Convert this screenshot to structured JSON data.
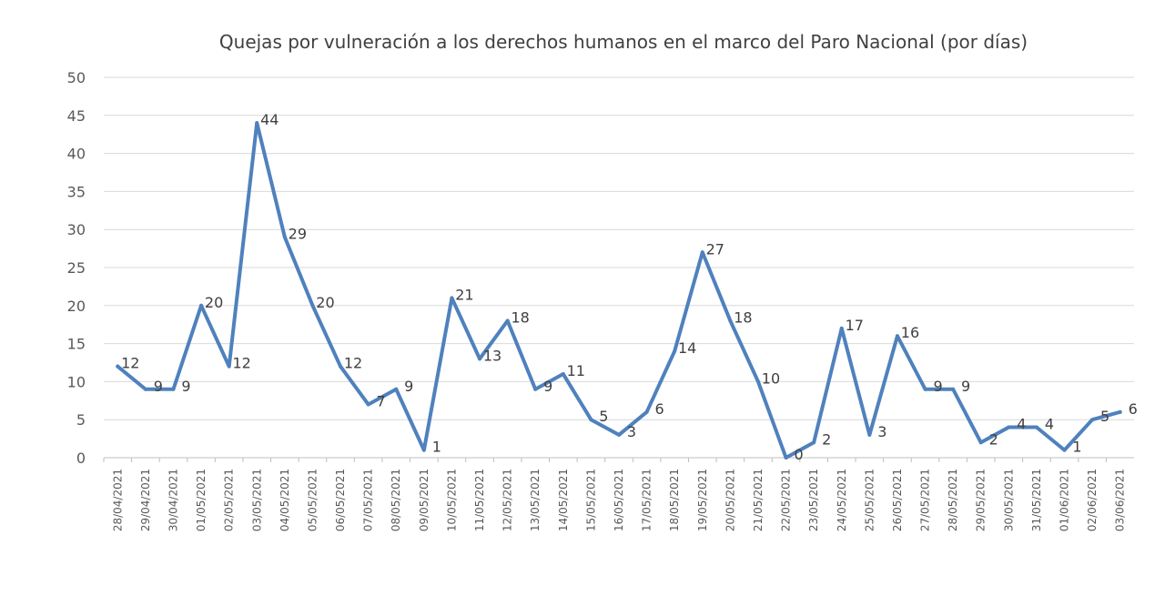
{
  "chart_data": {
    "type": "line",
    "title": "Quejas por vulneración a los derechos humanos en el marco del Paro Nacional (por días)",
    "xlabel": "",
    "ylabel": "",
    "ylim": [
      0,
      50
    ],
    "yticks": [
      0,
      5,
      10,
      15,
      20,
      25,
      30,
      35,
      40,
      45,
      50
    ],
    "grid": true,
    "legend": "none",
    "line_color": "#4f81bd",
    "categories": [
      "28/04/2021",
      "29/04/2021",
      "30/04/2021",
      "01/05/2021",
      "02/05/2021",
      "03/05/2021",
      "04/05/2021",
      "05/05/2021",
      "06/05/2021",
      "07/05/2021",
      "08/05/2021",
      "09/05/2021",
      "10/05/2021",
      "11/05/2021",
      "12/05/2021",
      "13/05/2021",
      "14/05/2021",
      "15/05/2021",
      "16/05/2021",
      "17/05/2021",
      "18/05/2021",
      "19/05/2021",
      "20/05/2021",
      "21/05/2021",
      "22/05/2021",
      "23/05/2021",
      "24/05/2021",
      "25/05/2021",
      "26/05/2021",
      "27/05/2021",
      "28/05/2021",
      "29/05/2021",
      "30/05/2021",
      "31/05/2021",
      "01/06/2021",
      "02/06/2021",
      "03/06/2021"
    ],
    "values": [
      12,
      9,
      9,
      20,
      12,
      44,
      29,
      20,
      12,
      7,
      9,
      1,
      21,
      13,
      18,
      9,
      11,
      5,
      3,
      6,
      14,
      27,
      18,
      10,
      0,
      2,
      17,
      3,
      16,
      9,
      9,
      2,
      4,
      4,
      1,
      5,
      6
    ]
  }
}
